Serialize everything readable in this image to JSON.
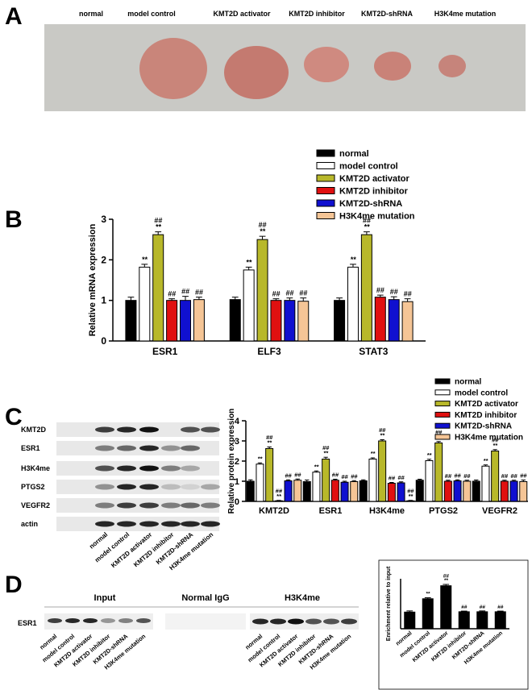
{
  "panels": {
    "A": {
      "label": "A",
      "groups": [
        "normal",
        "model control",
        "KMT2D activator",
        "KMT2D inhibitor",
        "KMT2D-shRNA",
        "H3K4me mutation"
      ]
    },
    "C": {
      "label": "C",
      "rows": [
        "KMT2D",
        "ESR1",
        "H3K4me",
        "PTGS2",
        "VEGFR2",
        "actin"
      ],
      "lanes": [
        "normal",
        "model control",
        "KMT2D activator",
        "KMT2D inhibitor",
        "KMT2D-shRNA",
        "H3K4me mutation"
      ]
    },
    "D": {
      "label": "D",
      "headers": [
        "Input",
        "Normal IgG",
        "H3K4me"
      ],
      "row": "ESR1",
      "input_lanes": [
        "normal",
        "model control",
        "KMT2D activator",
        "KMT2D inhibitor",
        "KMT2D-shRNA",
        "H3K4me mutation"
      ],
      "h3k4me_lanes": [
        "normal",
        "model control",
        "KMT2D activator",
        "KMT2D inhibitor",
        "KMT2D-shRNA",
        "H3K4me mutation"
      ]
    }
  },
  "chart_data": [
    {
      "type": "bar",
      "panel_label": "B",
      "ylabel": "Relative mRNA expression",
      "categories": [
        "ESR1",
        "ELF3",
        "STAT3"
      ],
      "ylim": [
        0,
        3
      ],
      "yticks": [
        0,
        1,
        2,
        3
      ],
      "series": [
        {
          "name": "normal",
          "color": "#000000",
          "values": [
            1.0,
            1.02,
            1.0
          ],
          "errors": [
            0.08,
            0.06,
            0.06
          ]
        },
        {
          "name": "model control",
          "color": "#ffffff",
          "values": [
            1.82,
            1.75,
            1.82
          ],
          "errors": [
            0.07,
            0.07,
            0.07
          ],
          "annotations": [
            [
              "**"
            ],
            [
              "**"
            ],
            [
              "**"
            ]
          ]
        },
        {
          "name": "KMT2D activator",
          "color": "#b8b82a",
          "values": [
            2.62,
            2.5,
            2.62
          ],
          "errors": [
            0.07,
            0.08,
            0.07
          ],
          "annotations": [
            [
              "**",
              "##"
            ],
            [
              "**",
              "##"
            ],
            [
              "**",
              "##"
            ]
          ]
        },
        {
          "name": "KMT2D inhibitor",
          "color": "#e01010",
          "values": [
            1.0,
            1.0,
            1.08
          ],
          "errors": [
            0.04,
            0.04,
            0.05
          ],
          "annotations": [
            [
              "##"
            ],
            [
              "##"
            ],
            [
              "##"
            ]
          ]
        },
        {
          "name": "KMT2D-shRNA",
          "color": "#1010d0",
          "values": [
            1.0,
            1.0,
            1.02
          ],
          "errors": [
            0.1,
            0.06,
            0.07
          ],
          "annotations": [
            [
              "##"
            ],
            [
              "##"
            ],
            [
              "##"
            ]
          ]
        },
        {
          "name": "H3K4me mutation",
          "color": "#f5c596",
          "values": [
            1.02,
            0.98,
            0.97
          ],
          "errors": [
            0.06,
            0.08,
            0.07
          ],
          "annotations": [
            [
              "##"
            ],
            [
              "##"
            ],
            [
              "##"
            ]
          ]
        }
      ]
    },
    {
      "type": "bar",
      "ylabel": "Relative protein expression",
      "categories": [
        "KMT2D",
        "ESR1",
        "H3K4me",
        "PTGS2",
        "VEGFR2"
      ],
      "ylim": [
        0,
        4
      ],
      "yticks": [
        0,
        1,
        2,
        3,
        4
      ],
      "series": [
        {
          "name": "normal",
          "color": "#000000",
          "values": [
            1.0,
            0.98,
            1.02,
            1.05,
            1.0
          ],
          "errors": [
            0.07,
            0.08,
            0.05,
            0.05,
            0.06
          ]
        },
        {
          "name": "model control",
          "color": "#ffffff",
          "values": [
            1.85,
            1.45,
            2.1,
            2.02,
            1.75
          ],
          "errors": [
            0.06,
            0.06,
            0.06,
            0.07,
            0.06
          ],
          "annotations": [
            [
              "**"
            ],
            [
              "**"
            ],
            [
              "**"
            ],
            [
              "**"
            ],
            [
              "**"
            ]
          ]
        },
        {
          "name": "KMT2D activator",
          "color": "#b8b82a",
          "values": [
            2.62,
            2.1,
            3.0,
            2.9,
            2.5
          ],
          "errors": [
            0.08,
            0.09,
            0.06,
            0.07,
            0.07
          ],
          "annotations": [
            [
              "**",
              "##"
            ],
            [
              "**",
              "##"
            ],
            [
              "**",
              "##"
            ],
            [
              "**",
              "##"
            ],
            [
              "**",
              "##"
            ]
          ]
        },
        {
          "name": "KMT2D inhibitor",
          "color": "#e01010",
          "values": [
            0.03,
            1.05,
            0.9,
            1.0,
            1.0
          ],
          "errors": [
            0.02,
            0.05,
            0.04,
            0.05,
            0.05
          ],
          "annotations": [
            [
              "**",
              "##"
            ],
            [
              "##"
            ],
            [
              "##"
            ],
            [
              "##"
            ],
            [
              "##"
            ]
          ]
        },
        {
          "name": "KMT2D-shRNA",
          "color": "#1010d0",
          "values": [
            1.02,
            0.95,
            0.92,
            1.02,
            1.0
          ],
          "errors": [
            0.05,
            0.05,
            0.05,
            0.05,
            0.05
          ],
          "annotations": [
            [
              "##"
            ],
            [
              "##"
            ],
            [
              "##"
            ],
            [
              "##"
            ],
            [
              "##"
            ]
          ]
        },
        {
          "name": "H3K4me mutation",
          "color": "#f5c596",
          "values": [
            1.05,
            0.98,
            0.03,
            1.0,
            0.98
          ],
          "errors": [
            0.06,
            0.05,
            0.02,
            0.05,
            0.08
          ],
          "annotations": [
            [
              "##"
            ],
            [
              "##"
            ],
            [
              "**",
              "##"
            ],
            [
              "##"
            ],
            [
              "##"
            ]
          ]
        }
      ]
    },
    {
      "type": "bar",
      "ylabel": "Enrichment relative to input",
      "categories": [
        "normal",
        "model control",
        "KMT2D activator",
        "KMT2D inhibitor",
        "KMT2D-shRNA",
        "H3K4me mutation"
      ],
      "ylim": [
        0,
        3
      ],
      "color": "#000000",
      "values": [
        1.0,
        1.8,
        2.58,
        1.02,
        1.02,
        1.02
      ],
      "errors": [
        0.07,
        0.06,
        0.08,
        0.04,
        0.05,
        0.04
      ],
      "annotations": [
        [],
        [
          "**"
        ],
        [
          "**",
          "##"
        ],
        [
          "##"
        ],
        [
          "##"
        ],
        [
          "##"
        ]
      ]
    }
  ]
}
